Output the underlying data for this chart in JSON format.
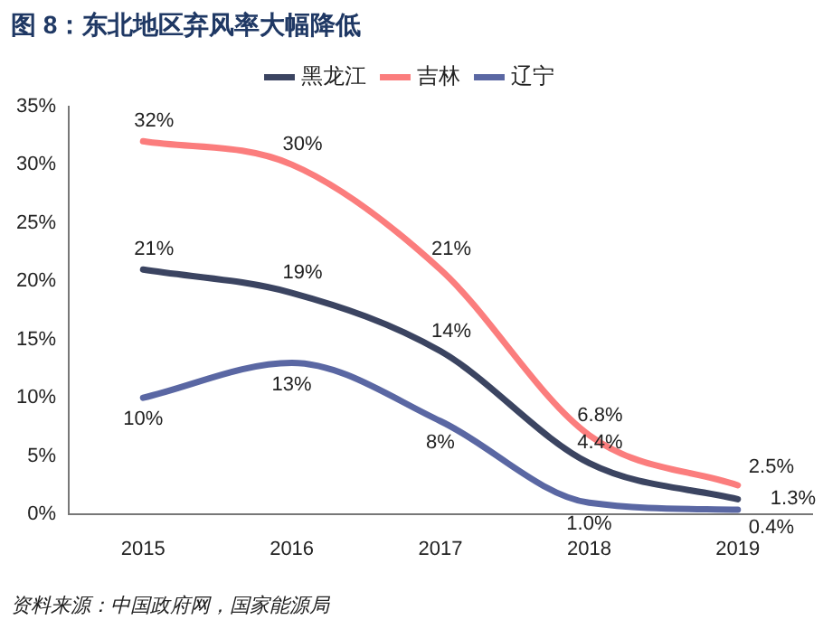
{
  "chart_data": {
    "type": "line",
    "title": "图 8：东北地区弃风率大幅降低",
    "categories": [
      "2015",
      "2016",
      "2017",
      "2018",
      "2019"
    ],
    "series": [
      {
        "name": "黑龙江",
        "color": "#3b4461",
        "values": [
          21,
          19,
          14,
          4.4,
          1.3
        ],
        "value_labels": [
          "21%",
          "19%",
          "14%",
          "4.4%",
          "1.3%"
        ]
      },
      {
        "name": "吉林",
        "color": "#fb7d7d",
        "values": [
          32,
          30,
          21,
          6.8,
          2.5
        ],
        "value_labels": [
          "32%",
          "30%",
          "21%",
          "6.8%",
          "2.5%"
        ]
      },
      {
        "name": "辽宁",
        "color": "#5a67a3",
        "values": [
          10,
          13,
          8,
          1.0,
          0.4
        ],
        "value_labels": [
          "10%",
          "13%",
          "8%",
          "1.0%",
          "0.4%"
        ]
      }
    ],
    "ylim": [
      0,
      35
    ],
    "yticks": [
      {
        "value": 0,
        "label": "0%"
      },
      {
        "value": 5,
        "label": "5%"
      },
      {
        "value": 10,
        "label": "10%"
      },
      {
        "value": 15,
        "label": "15%"
      },
      {
        "value": 20,
        "label": "20%"
      },
      {
        "value": 25,
        "label": "25%"
      },
      {
        "value": 30,
        "label": "30%"
      },
      {
        "value": 35,
        "label": "35%"
      }
    ],
    "grid": false,
    "legend": "top",
    "marker": "none",
    "line_style": "solid",
    "annotations": [
      "资料来源：中国政府网，国家能源局"
    ]
  }
}
